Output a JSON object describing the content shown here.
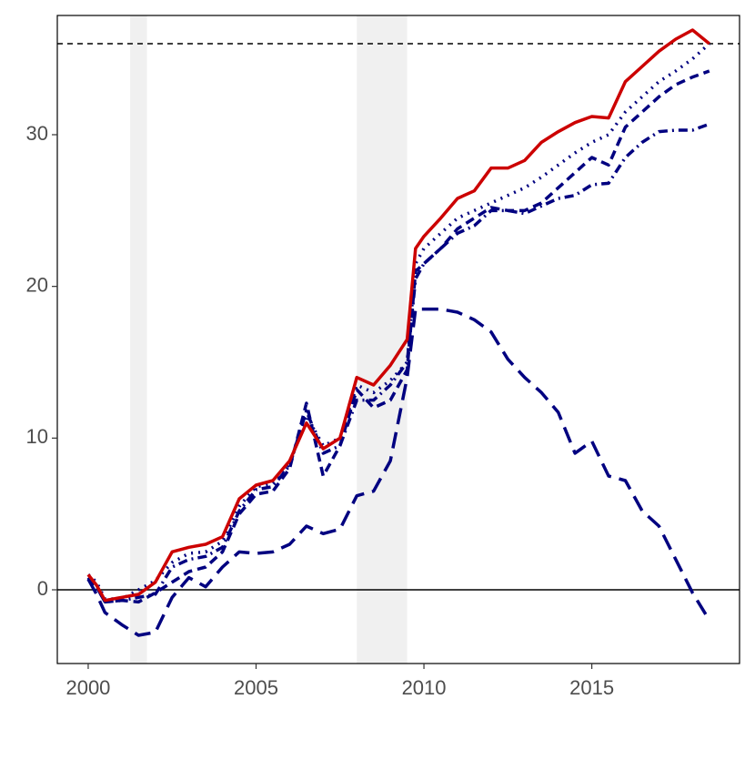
{
  "chart_data": {
    "type": "line",
    "x": [
      2000,
      2000.25,
      2000.5,
      2001,
      2001.5,
      2002,
      2002.5,
      2003,
      2003.5,
      2004,
      2004.5,
      2005,
      2005.5,
      2006,
      2006.5,
      2007,
      2007.5,
      2008,
      2008.5,
      2009,
      2009.5,
      2009.75,
      2010,
      2010.5,
      2011,
      2011.5,
      2012,
      2012.5,
      2013,
      2013.5,
      2014,
      2014.5,
      2015,
      2015.5,
      2016,
      2016.5,
      2017,
      2017.5,
      2018,
      2018.5
    ],
    "series": [
      {
        "color": "#000080",
        "dash": "18,9",
        "values": [
          0.7,
          -0.3,
          -1.5,
          -2.3,
          -3,
          -2.8,
          -0.5,
          0.8,
          0.2,
          1.5,
          2.5,
          2.4,
          2.5,
          3,
          4.2,
          3.7,
          4,
          6.2,
          6.5,
          8.5,
          14,
          18.5,
          18.5,
          18.5,
          18.3,
          17.8,
          17,
          15.2,
          14,
          13,
          11.7,
          9,
          9.8,
          7.5,
          7.2,
          5.2,
          4.2,
          2,
          -0.2,
          -2
        ]
      },
      {
        "color": "#000080",
        "dash": "10,5,2,5",
        "values": [
          0.8,
          0.2,
          -0.8,
          -0.7,
          -0.5,
          -0.3,
          1.5,
          2,
          2.2,
          2.8,
          5.2,
          6.6,
          6.8,
          8.2,
          11.8,
          9,
          9.5,
          12.5,
          12.5,
          13.5,
          15,
          20.5,
          21.5,
          22.5,
          23.5,
          24,
          25,
          25,
          24.8,
          25.3,
          25.8,
          26,
          26.7,
          26.8,
          28.5,
          29.5,
          30.2,
          30.3,
          30.3,
          30.7
        ]
      },
      {
        "color": "#000080",
        "dash": "10,6",
        "values": [
          0.8,
          0.2,
          -0.8,
          -0.7,
          -0.8,
          -0.2,
          0.5,
          1.2,
          1.5,
          2.5,
          5,
          6.3,
          6.5,
          8,
          12.3,
          7.5,
          9.5,
          13.2,
          12,
          12.5,
          14.5,
          21,
          21.5,
          22.5,
          23.8,
          24.5,
          25.2,
          25,
          25,
          25.5,
          26.5,
          27.5,
          28.5,
          28,
          30.5,
          31.5,
          32.5,
          33.3,
          33.8,
          34.2
        ]
      },
      {
        "color": "#000080",
        "dash": "2,6",
        "values": [
          1,
          0.5,
          -0.6,
          -0.6,
          0,
          0.6,
          1.8,
          2.4,
          2.5,
          3.2,
          5.5,
          6.8,
          7,
          8.3,
          11.5,
          9.5,
          10,
          13.5,
          13,
          13.8,
          15,
          21.5,
          22.5,
          23.5,
          24.5,
          25,
          25.5,
          26,
          26.5,
          27.2,
          28,
          28.8,
          29.5,
          30,
          31.5,
          32.5,
          33.5,
          34.2,
          35,
          36
        ]
      },
      {
        "color": "#cc0000",
        "dash": "none",
        "values": [
          1,
          0.3,
          -0.7,
          -0.5,
          -0.3,
          0.5,
          2.5,
          2.8,
          3,
          3.5,
          6,
          6.9,
          7.2,
          8.5,
          11,
          9.3,
          10,
          14,
          13.5,
          14.8,
          16.5,
          22.5,
          23.3,
          24.5,
          25.8,
          26.3,
          27.8,
          27.8,
          28.3,
          29.5,
          30.2,
          30.8,
          31.2,
          31.1,
          33.5,
          34.5,
          35.5,
          36.3,
          36.9,
          36
        ]
      }
    ],
    "shaded_ranges": [
      [
        2001.25,
        2001.75
      ],
      [
        2008,
        2009.5
      ]
    ],
    "reference_lines": [
      {
        "value": 0,
        "dash": "none"
      },
      {
        "value": 36,
        "dash": "6,5"
      }
    ],
    "xlim": [
      1999.08,
      2019.4
    ],
    "ylim": [
      -4.86,
      37.86
    ],
    "xticks": [
      2000,
      2005,
      2010,
      2015
    ],
    "yticks": [
      0,
      10,
      20,
      30
    ]
  }
}
